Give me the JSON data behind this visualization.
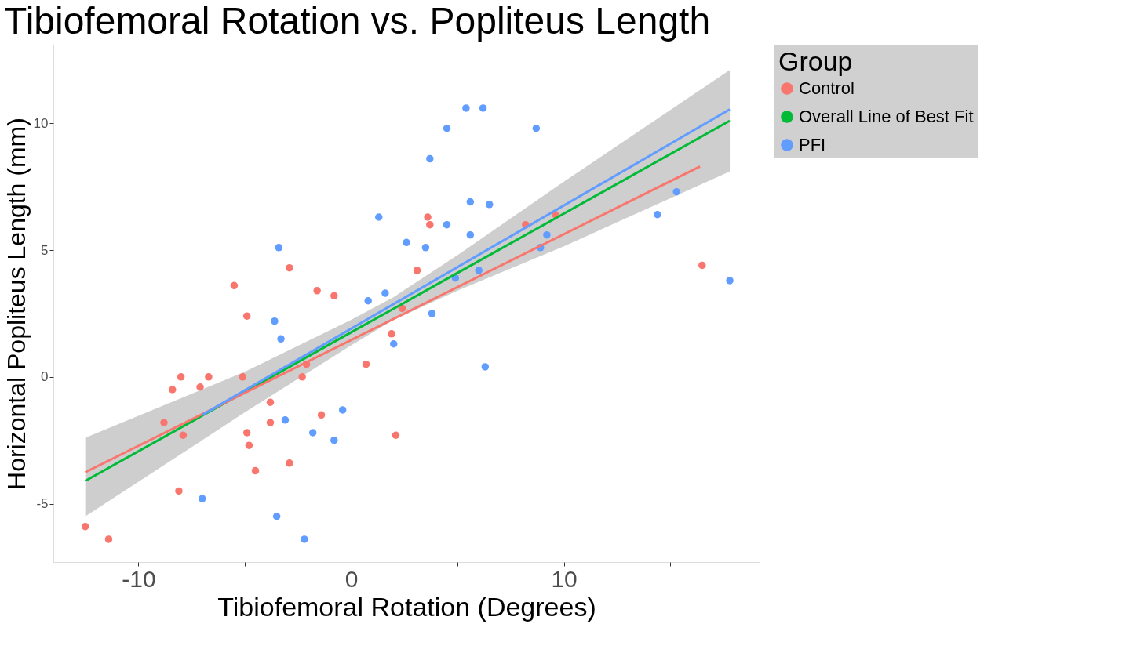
{
  "chart_data": {
    "type": "scatter",
    "title": "Tibiofemoral Rotation vs. Popliteus Length",
    "xlabel": "Tibiofemoral Rotation (Degrees)",
    "ylabel": "Horizontal Popliteus Length (mm)",
    "legend_title": "Group",
    "legend": "right",
    "grid": true,
    "xlim": [
      -14,
      19.2
    ],
    "ylim": [
      -7.3,
      13.1
    ],
    "xticks": [
      -10,
      {
        "value": -5,
        "label": null
      },
      0,
      {
        "value": 5,
        "label": null
      },
      10,
      {
        "value": 15,
        "label": null
      }
    ],
    "yticks": [
      -5,
      {
        "value": -2.5,
        "label": null
      },
      0,
      {
        "value": 2.5,
        "label": null
      },
      5,
      {
        "value": 7.5,
        "label": null
      },
      10,
      {
        "value": 12.5,
        "label": null
      }
    ],
    "series": [
      {
        "name": "Control",
        "marker": "circle",
        "color": "#f8766d",
        "x": [
          -12.5,
          -11.4,
          -8.8,
          -8.4,
          -8.0,
          -7.9,
          -8.1,
          -7.1,
          -6.7,
          -5.5,
          -5.1,
          -4.9,
          -4.9,
          -4.8,
          -4.5,
          -3.8,
          -3.8,
          -2.9,
          -2.9,
          -2.3,
          -2.1,
          -1.6,
          -1.4,
          -0.8,
          0.7,
          1.9,
          2.1,
          2.4,
          3.1,
          3.6,
          3.7,
          8.2,
          9.6,
          16.5
        ],
        "values": [
          -5.9,
          -6.4,
          -1.8,
          -0.5,
          0.0,
          -2.3,
          -4.5,
          -0.4,
          0.0,
          3.6,
          0.0,
          2.4,
          -2.2,
          -2.7,
          -3.7,
          -1.0,
          -1.8,
          4.3,
          -3.4,
          0.0,
          0.5,
          3.4,
          -1.5,
          3.2,
          0.5,
          1.7,
          -2.3,
          2.7,
          4.2,
          6.3,
          6.0,
          6.0,
          6.4,
          4.4
        ]
      },
      {
        "name": "Overall Line of Best Fit",
        "type": "line",
        "marker": "none",
        "color": "#00ba38",
        "x": [
          -12.5,
          -5,
          0,
          2,
          5,
          10,
          17.8
        ],
        "values": [
          -4.1,
          -0.59,
          1.76,
          2.69,
          4.1,
          6.44,
          10.1
        ],
        "lower": [
          -5.5,
          -1.4,
          1.25,
          2.25,
          3.4,
          5.15,
          8.1
        ],
        "upper": [
          -2.4,
          0.2,
          2.25,
          3.15,
          4.8,
          7.7,
          12.1
        ]
      },
      {
        "name": "PFI",
        "marker": "circle",
        "color": "#619cff",
        "x": [
          -7.0,
          -3.6,
          -3.4,
          -3.5,
          -3.3,
          -3.1,
          -2.2,
          -1.8,
          -0.8,
          -0.4,
          0.8,
          1.3,
          1.6,
          2.0,
          2.6,
          3.5,
          6.3,
          3.8,
          3.7,
          4.5,
          5.4,
          6.2,
          4.5,
          5.6,
          6.5,
          5.6,
          4.9,
          6.0,
          8.7,
          8.9,
          9.2,
          14.4,
          15.3,
          17.8
        ],
        "values": [
          -4.8,
          2.2,
          5.1,
          -5.5,
          1.5,
          -1.7,
          -6.4,
          -2.2,
          -2.5,
          -1.3,
          3.0,
          6.3,
          3.3,
          1.3,
          5.3,
          5.1,
          0.4,
          2.5,
          8.6,
          9.8,
          10.6,
          10.6,
          6.0,
          6.9,
          6.8,
          5.6,
          3.9,
          4.2,
          9.8,
          5.1,
          5.6,
          6.4,
          7.3,
          3.8
        ]
      },
      {
        "type": "line",
        "marker": "none",
        "color": "#f8766d",
        "x": [
          -12.5,
          16.4
        ],
        "values": [
          -3.76,
          8.3
        ]
      },
      {
        "type": "line",
        "marker": "none",
        "color": "#619cff",
        "x": [
          -7.0,
          17.8
        ],
        "values": [
          -1.5,
          10.55
        ]
      }
    ]
  }
}
